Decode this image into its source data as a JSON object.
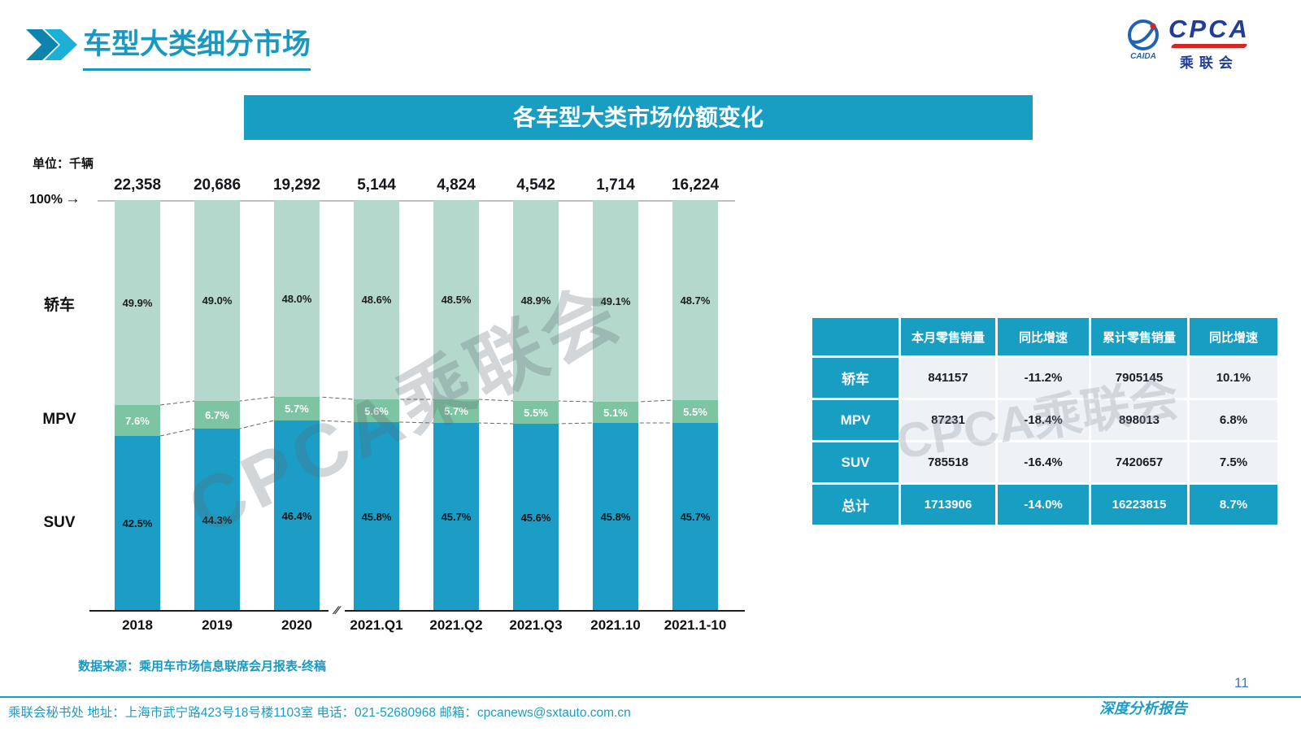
{
  "page": {
    "title": "车型大类细分市场",
    "page_number": "11",
    "report_tag": "深度分析报告"
  },
  "logo": {
    "name": "CPCA",
    "sub": "乘联会",
    "badge": "CAIDA"
  },
  "banner": {
    "title": "各车型大类市场份额变化"
  },
  "watermark": "CPCA乘联会",
  "chart_data": {
    "type": "bar",
    "stacked": true,
    "unit_label": "单位：千辆",
    "axis_top_label": "100%",
    "categories": [
      "2018",
      "2019",
      "2020",
      "2021.Q1",
      "2021.Q2",
      "2021.Q3",
      "2021.10",
      "2021.1-10"
    ],
    "totals": [
      "22,358",
      "20,686",
      "19,292",
      "5,144",
      "4,824",
      "4,542",
      "1,714",
      "16,224"
    ],
    "series": [
      {
        "name": "轿车",
        "color": "#b5d8cc",
        "label_color": "#1c1c1c",
        "values": [
          49.9,
          49.0,
          48.0,
          48.6,
          48.5,
          48.9,
          49.1,
          48.7
        ]
      },
      {
        "name": "MPV",
        "color": "#7cc4a2",
        "label_color": "#ffffff",
        "values": [
          7.6,
          6.7,
          5.7,
          5.6,
          5.7,
          5.5,
          5.1,
          5.5
        ]
      },
      {
        "name": "SUV",
        "color": "#1b9dc6",
        "label_color": "#111111",
        "values": [
          42.5,
          44.3,
          46.4,
          45.8,
          45.7,
          45.6,
          45.8,
          45.7
        ]
      }
    ],
    "ylim": [
      0,
      100
    ],
    "axis_break_after_index": 2,
    "legend_position": "left",
    "source_note": "数据来源：乘用车市场信息联席会月报表-终稿"
  },
  "table": {
    "headers": [
      "",
      "本月零售销量",
      "同比增速",
      "累计零售销量",
      "同比增速"
    ],
    "rows": [
      {
        "label": "轿车",
        "cells": [
          "841157",
          "-11.2%",
          "7905145",
          "10.1%"
        ],
        "total": false
      },
      {
        "label": "MPV",
        "cells": [
          "87231",
          "-18.4%",
          "898013",
          "6.8%"
        ],
        "total": false
      },
      {
        "label": "SUV",
        "cells": [
          "785518",
          "-16.4%",
          "7420657",
          "7.5%"
        ],
        "total": false
      },
      {
        "label": "总计",
        "cells": [
          "1713906",
          "-14.0%",
          "16223815",
          "8.7%"
        ],
        "total": true
      }
    ]
  },
  "footer": {
    "left": "乘联会秘书处   地址：上海市武宁路423号18号楼1103室 电话：021-52680968  邮箱：cpcanews@sxtauto.com.cn"
  }
}
